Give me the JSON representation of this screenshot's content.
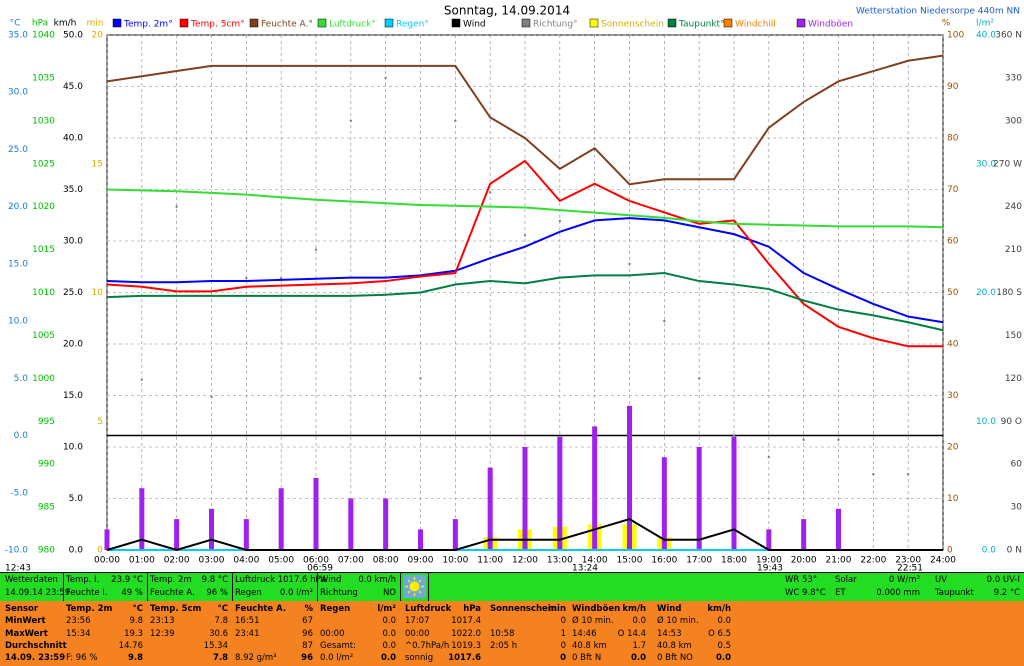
{
  "chart_data": {
    "type": "line",
    "title": "Sonntag, 14.09.2014",
    "station": "Wetterstation Niedersorpe 440m NN",
    "x": [
      0,
      1,
      2,
      3,
      4,
      5,
      6,
      7,
      8,
      9,
      10,
      11,
      12,
      13,
      14,
      15,
      16,
      17,
      18,
      19,
      20,
      21,
      22,
      23,
      24
    ],
    "xlim": [
      0,
      24
    ],
    "xticks": [
      {
        "value": 0,
        "label": "00:00"
      },
      {
        "value": 1,
        "label": "01:00"
      },
      {
        "value": 2,
        "label": "02:00"
      },
      {
        "value": 3,
        "label": "03:00"
      },
      {
        "value": 4,
        "label": "04:00"
      },
      {
        "value": 5,
        "label": "05:00"
      },
      {
        "value": 6,
        "label": "06:00"
      },
      {
        "value": 7,
        "label": "07:00"
      },
      {
        "value": 8,
        "label": "08:00"
      },
      {
        "value": 9,
        "label": "09:00"
      },
      {
        "value": 10,
        "label": "10:00"
      },
      {
        "value": 11,
        "label": "11:00"
      },
      {
        "value": 12,
        "label": "12:00"
      },
      {
        "value": 13,
        "label": "13:00"
      },
      {
        "value": 14,
        "label": "14:00"
      },
      {
        "value": 15,
        "label": "15:00"
      },
      {
        "value": 16,
        "label": "16:00"
      },
      {
        "value": 17,
        "label": "17:00"
      },
      {
        "value": 18,
        "label": "18:00"
      },
      {
        "value": 19,
        "label": "19:00"
      },
      {
        "value": 20,
        "label": "20:00"
      },
      {
        "value": 21,
        "label": "21:00"
      },
      {
        "value": 22,
        "label": "22:00"
      },
      {
        "value": 23,
        "label": "23:00"
      },
      {
        "value": 24,
        "label": "24:00"
      }
    ],
    "grid": true,
    "axes": [
      {
        "unit": "°C",
        "color": "#1a7fd0",
        "lim": [
          -10,
          35
        ],
        "zero_line": true,
        "ticks": [
          {
            "value": 35,
            "label": "35.0"
          },
          {
            "value": 30,
            "label": "30.0"
          },
          {
            "value": 25,
            "label": "25.0"
          },
          {
            "value": 20,
            "label": "20.0"
          },
          {
            "value": 15,
            "label": "15.0"
          },
          {
            "value": 10,
            "label": "10.0"
          },
          {
            "value": 5,
            "label": "5.0"
          },
          {
            "value": 0,
            "label": "0.0"
          },
          {
            "value": -5,
            "label": "-5.0"
          },
          {
            "value": -10,
            "label": "-10.0"
          }
        ]
      },
      {
        "unit": "hPa",
        "color": "#00c000",
        "lim": [
          980,
          1040
        ],
        "ticks": [
          1040,
          1035,
          1030,
          1025,
          1020,
          1015,
          1010,
          1005,
          1000,
          995,
          990,
          985,
          980
        ]
      },
      {
        "unit": "km/h",
        "color": "#000000",
        "lim": [
          0,
          50
        ],
        "grid": true,
        "ticks": [
          {
            "value": 50,
            "label": "50.0"
          },
          {
            "value": 45,
            "label": "45.0"
          },
          {
            "value": 40,
            "label": "40.0"
          },
          {
            "value": 35,
            "label": "35.0"
          },
          {
            "value": 30,
            "label": "30.0"
          },
          {
            "value": 25,
            "label": "25.0"
          },
          {
            "value": 20,
            "label": "20.0"
          },
          {
            "value": 15,
            "label": "15.0"
          },
          {
            "value": 10,
            "label": "10.0"
          },
          {
            "value": 5,
            "label": "5.0"
          },
          {
            "value": 0,
            "label": "0.0"
          }
        ]
      },
      {
        "unit": "min",
        "color": "#d4b000",
        "lim": [
          0,
          20
        ],
        "ticks": [
          20,
          15,
          10,
          5,
          0
        ]
      },
      {
        "unit": "%",
        "color": "#a05000",
        "lim": [
          0,
          100
        ],
        "ticks": [
          100,
          90,
          80,
          70,
          60,
          50,
          40,
          30,
          20,
          10,
          0
        ]
      },
      {
        "unit": "l/m²",
        "color": "#00b0c0",
        "lim": [
          0,
          40
        ],
        "ticks": [
          {
            "value": 40,
            "label": "40.0"
          },
          {
            "value": 30,
            "label": "30.0"
          },
          {
            "value": 20,
            "label": "20.0"
          },
          {
            "value": 10,
            "label": "10.0"
          },
          {
            "value": 0,
            "label": "0.0"
          }
        ]
      },
      {
        "color": "#404040",
        "lim": [
          0,
          360
        ],
        "ticks": [
          {
            "value": 360,
            "label": "360 N"
          },
          330,
          300,
          {
            "value": 270,
            "label": "270 W"
          },
          240,
          210,
          {
            "value": 180,
            "label": "180 S"
          },
          150,
          120,
          {
            "value": 90,
            "label": "90 O"
          },
          60,
          30,
          {
            "value": 0,
            "label": "0 N"
          }
        ]
      }
    ],
    "series": [
      {
        "name": "Temp. 2m°",
        "color": "#0000ff",
        "axis": 0,
        "kind": "line",
        "values": [
          13.5,
          13.4,
          13.4,
          13.5,
          13.5,
          13.6,
          13.7,
          13.8,
          13.8,
          14.0,
          14.4,
          15.5,
          16.5,
          17.8,
          18.8,
          19.0,
          18.8,
          18.2,
          17.6,
          16.5,
          14.2,
          12.8,
          11.5,
          10.4,
          9.9
        ]
      },
      {
        "name": "Temp. 5cm°",
        "color": "#ff0000",
        "axis": 0,
        "kind": "line",
        "values": [
          13.2,
          13.0,
          12.6,
          12.6,
          13.0,
          13.1,
          13.2,
          13.3,
          13.5,
          13.9,
          14.2,
          22.0,
          24.0,
          20.5,
          22.0,
          20.5,
          19.5,
          18.5,
          18.8,
          15.0,
          11.5,
          9.5,
          8.5,
          7.8,
          7.8
        ]
      },
      {
        "name": "Feuchte A.°",
        "color": "#804020",
        "axis": 4,
        "kind": "line",
        "values": [
          91,
          92,
          93,
          94,
          94,
          94,
          94,
          94,
          94,
          94,
          94,
          84,
          80,
          74,
          78,
          71,
          72,
          72,
          72,
          82,
          87,
          91,
          93,
          95,
          96
        ]
      },
      {
        "name": "Luftdruck°",
        "color": "#33dd33",
        "axis": 1,
        "kind": "line",
        "values": [
          1022.0,
          1021.9,
          1021.8,
          1021.6,
          1021.4,
          1021.1,
          1020.8,
          1020.6,
          1020.4,
          1020.2,
          1020.1,
          1020.0,
          1019.9,
          1019.6,
          1019.3,
          1019.0,
          1018.7,
          1018.3,
          1018.0,
          1017.9,
          1017.8,
          1017.7,
          1017.7,
          1017.7,
          1017.6
        ]
      },
      {
        "name": "Regen°",
        "color": "#00ccff",
        "axis": 5,
        "kind": "line",
        "values": [
          0,
          0,
          0,
          0,
          0,
          0,
          0,
          0,
          0,
          0,
          0,
          0,
          0,
          0,
          0,
          0,
          0,
          0,
          0,
          0,
          0,
          0,
          0,
          0,
          0
        ]
      },
      {
        "name": "Wind",
        "color": "#000000",
        "axis": 2,
        "kind": "line",
        "values": [
          0,
          1,
          0,
          1,
          0,
          0,
          0,
          0,
          0,
          0,
          0,
          1,
          1,
          1,
          2,
          3,
          1,
          1,
          2,
          0,
          0,
          0,
          0,
          0,
          0
        ]
      },
      {
        "name": "Richtung°",
        "color": "#808080",
        "axis": 6,
        "kind": "dots",
        "values": [
          119,
          119,
          240,
          107,
          190,
          190,
          210,
          300,
          330,
          120,
          300,
          250,
          220,
          230,
          280,
          200,
          160,
          120,
          80,
          65,
          77,
          77,
          53,
          53,
          53
        ]
      },
      {
        "name": "Sonnenschein",
        "color": "#ffff00",
        "axis": 3,
        "kind": "bars",
        "values": [
          0,
          0,
          0,
          0,
          0,
          0,
          0,
          0,
          0,
          0,
          0,
          0.5,
          0.8,
          0.9,
          1,
          1,
          0.5,
          0,
          0,
          0,
          0,
          0,
          0,
          0,
          0
        ]
      },
      {
        "name": "Taupunkt°",
        "color": "#008040",
        "axis": 0,
        "kind": "line",
        "values": [
          12.1,
          12.2,
          12.2,
          12.2,
          12.2,
          12.2,
          12.2,
          12.2,
          12.3,
          12.5,
          13.2,
          13.5,
          13.3,
          13.8,
          14.0,
          14.0,
          14.2,
          13.5,
          13.2,
          12.8,
          11.8,
          11.0,
          10.5,
          9.9,
          9.2
        ]
      },
      {
        "name": "Windchill",
        "color": "#ff8000",
        "axis": 0,
        "kind": "line",
        "values": [
          null,
          null,
          null,
          null,
          null,
          null,
          null,
          null,
          null,
          null,
          null,
          null,
          null,
          null,
          null,
          null,
          null,
          null,
          null,
          null,
          null,
          null,
          null,
          null,
          null
        ]
      },
      {
        "name": "Windböen",
        "color": "#a020f0",
        "axis": 2,
        "kind": "bars",
        "values": [
          2,
          6,
          3,
          4,
          3,
          6,
          7,
          5,
          5,
          2,
          3,
          8,
          10,
          11,
          12,
          14,
          9,
          10,
          11,
          2,
          3,
          4,
          0,
          0,
          0
        ]
      }
    ],
    "sun_times": [
      "12:43",
      "06:59",
      "13:24",
      "19:43",
      "22:51"
    ]
  },
  "status_bar": {
    "rows": [
      [
        "Wetterdaten",
        "Temp. I.",
        "23.9 °C",
        "Temp. 2m",
        "9.8 °C",
        "Luftdruck 1017.6 hPa",
        "Wind",
        "0.0 km/h",
        "WR 53°",
        "Solar",
        "0 W/m²",
        "UV",
        "0.0 UV-I"
      ],
      [
        "14.09.14 23:59",
        "Feuchte I.",
        "49 %",
        "Feuchte A.",
        "96 %",
        "Regen",
        "0.0 l/m²",
        "Richtung",
        "NO",
        "WC 9.8°C",
        "ET",
        "0.000 mm",
        "Taupunkt",
        "9.2 °C"
      ]
    ]
  },
  "table": {
    "rows": [
      [
        "Sensor",
        "Temp. 2m",
        "°C",
        "Temp. 5cm",
        "°C",
        "Feuchte A.",
        "%",
        "Regen",
        "l/m²",
        "Luftdruck",
        "hPa",
        "Sonnenschein",
        "min",
        "Windböen",
        "km/h",
        "Wind",
        "km/h"
      ],
      [
        "MinWert",
        "23:56",
        "9.8",
        "23:13",
        "7.8",
        "16:51",
        "67",
        null,
        "0.0",
        "17:07",
        "1017.4",
        null,
        "0",
        "Ø 10 min.",
        "0.0",
        "Ø 10 min.",
        "0.0"
      ],
      [
        "MaxWert",
        "15:34",
        "19.3",
        "12:39",
        "30.6",
        "23:41",
        "96",
        "00:00",
        "0.0",
        "00:00",
        "1022.0",
        "10:58",
        "1",
        "14:46",
        "O 14.4",
        "14:53",
        "O 6.5"
      ],
      [
        "Durchschnitt",
        null,
        "14.76",
        null,
        "15.34",
        null,
        "87",
        "Gesamt:",
        "0.0",
        "^0.7hPa/h",
        "1019.3",
        "2:05 h",
        "0",
        "40.8 km",
        "1.7",
        "40.8 km",
        "0.5"
      ],
      [
        "14.09. 23:59",
        "F: 96 %",
        "9.8",
        null,
        "7.8",
        "8.92 g/m³",
        "96",
        "0.0 l/m²",
        "0.0",
        "sonnig",
        "1017.6",
        null,
        "0",
        "0 Bft N",
        "0.0",
        "0 Bft NO",
        "0.0"
      ]
    ]
  }
}
